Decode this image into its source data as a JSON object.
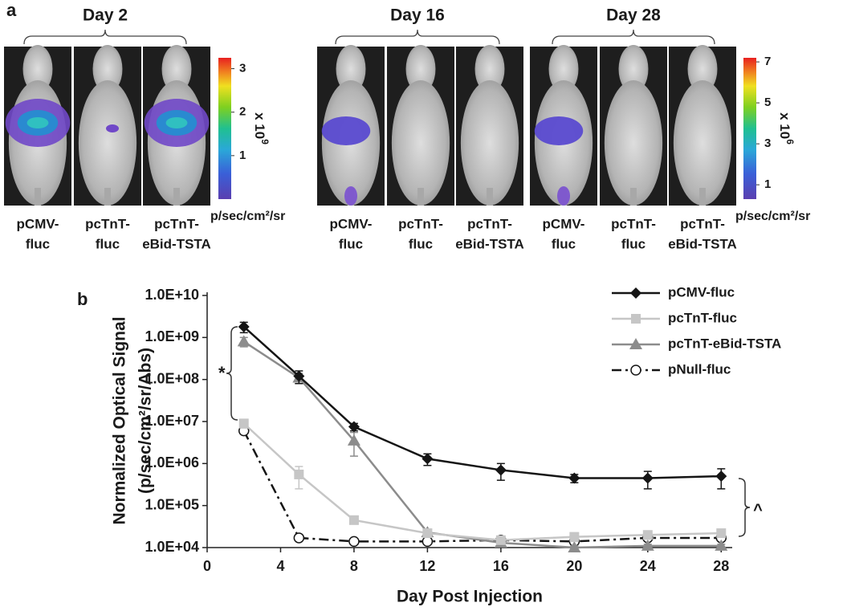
{
  "panel_a": {
    "label": "a",
    "groups": [
      {
        "title": "Day 2",
        "images": [
          {
            "label": [
              "pCMV-",
              "fluc"
            ]
          },
          {
            "label": [
              "pcTnT-",
              "fluc"
            ]
          },
          {
            "label": [
              "pcTnT-",
              "eBid-TSTA"
            ]
          }
        ]
      },
      {
        "title": "Day 16",
        "images": [
          {
            "label": [
              "pCMV-",
              "fluc"
            ]
          },
          {
            "label": [
              "pcTnT-",
              "fluc"
            ]
          },
          {
            "label": [
              "pcTnT-",
              "eBid-TSTA"
            ]
          }
        ]
      },
      {
        "title": "Day 28",
        "images": [
          {
            "label": [
              "pCMV-",
              "fluc"
            ]
          },
          {
            "label": [
              "pcTnT-",
              "fluc"
            ]
          },
          {
            "label": [
              "pcTnT-",
              "eBid-TSTA"
            ]
          }
        ]
      }
    ],
    "colorbars": [
      {
        "ticks": [
          1,
          2,
          3
        ],
        "lim": [
          0,
          3.25
        ],
        "multiplier": "x 10",
        "exponent": "9",
        "unit": "p/sec/cm²/sr"
      },
      {
        "ticks": [
          1,
          3,
          5,
          7
        ],
        "lim": [
          0.3,
          7.2
        ],
        "multiplier": "x 10",
        "exponent": "6",
        "unit": "p/sec/cm²/sr"
      }
    ]
  },
  "chart_data": {
    "type": "line",
    "panel_label": "b",
    "xlabel": "Day Post Injection",
    "ylabel": [
      "Normalized Optical Signal",
      "(p/sec/cm²/sr/Abs)"
    ],
    "log_y": true,
    "legend": "upper right",
    "x": [
      2,
      5,
      8,
      12,
      16,
      20,
      24,
      28
    ],
    "xlim": [
      0,
      28.6
    ],
    "xticks": [
      0,
      4,
      8,
      12,
      16,
      20,
      24,
      28
    ],
    "ylim": [
      10000,
      10000000000
    ],
    "yticks": [
      {
        "value": 10000,
        "label": "1.0E+04"
      },
      {
        "value": 100000,
        "label": "1.0E+05"
      },
      {
        "value": 1000000,
        "label": "1.0E+06"
      },
      {
        "value": 10000000,
        "label": "1.0E+07"
      },
      {
        "value": 100000000,
        "label": "1.0E+08"
      },
      {
        "value": 1000000000,
        "label": "1.0E+09"
      },
      {
        "value": 10000000000,
        "label": "1.0E+10"
      }
    ],
    "series": [
      {
        "name": "pCMV-fluc",
        "color": "#151515",
        "marker": "diamond",
        "dash": "solid",
        "values": [
          1800000000,
          120000000,
          7500000,
          1300000,
          700000,
          450000,
          450000,
          500000
        ],
        "errors": [
          500000000,
          40000000,
          1500000,
          400000,
          300000,
          100000,
          200000,
          250000
        ]
      },
      {
        "name": "pcTnT-fluc",
        "color": "#c6c6c6",
        "marker": "square",
        "dash": "solid",
        "values": [
          9000000,
          550000,
          45000,
          22000,
          15000,
          18000,
          20000,
          22000
        ],
        "errors": [
          2000000,
          300000,
          5000,
          3000,
          2000,
          4000,
          4000,
          3000
        ]
      },
      {
        "name": "pcTnT-eBid-TSTA",
        "color": "#8c8c8c",
        "marker": "triangle",
        "dash": "solid",
        "values": [
          800000000,
          110000000,
          3500000,
          23000,
          13000,
          10000,
          11000,
          11000
        ],
        "errors": [
          200000000,
          30000000,
          2000000,
          3000,
          2000,
          1000,
          1000,
          1000
        ]
      },
      {
        "name": "pNull-fluc",
        "color": "#151515",
        "marker": "circle",
        "dash": "dashdot",
        "values": [
          6000000,
          17000,
          14000,
          14000,
          15000,
          14000,
          17000,
          17000
        ]
      }
    ],
    "annotations": [
      "*",
      "^"
    ]
  }
}
